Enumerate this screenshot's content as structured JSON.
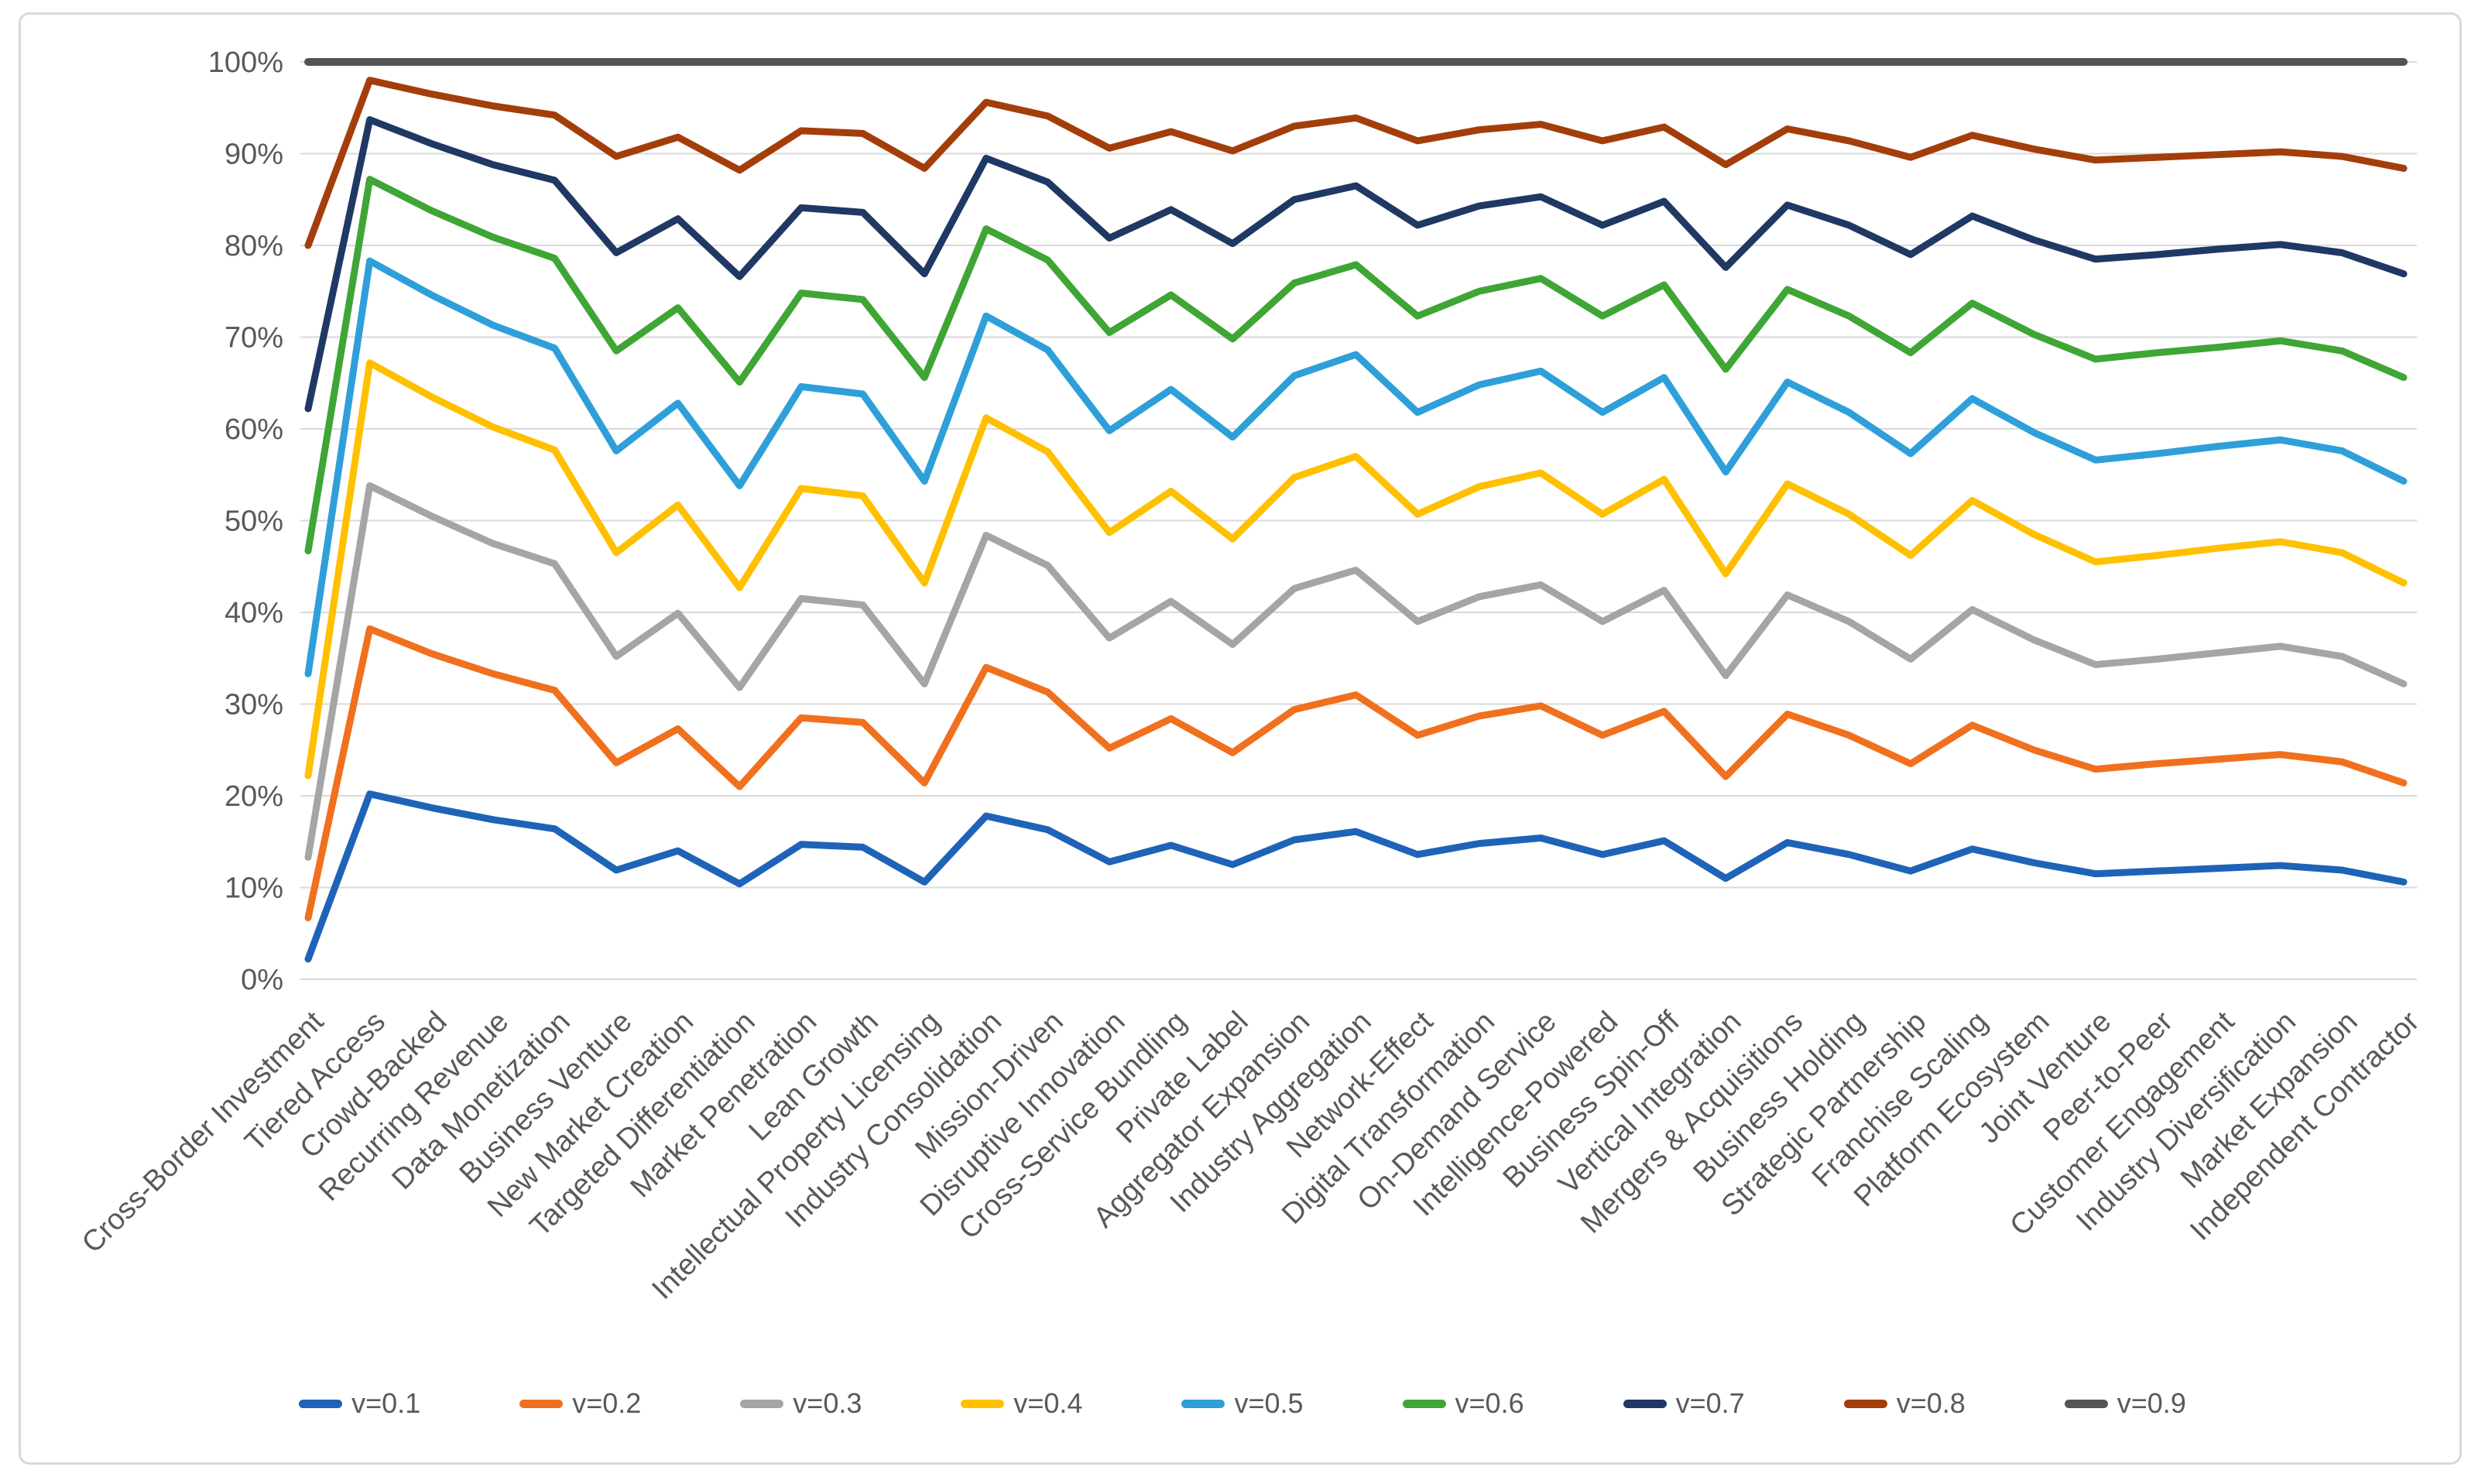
{
  "figure": {
    "background_color": "#FFFFFF",
    "border_color": "#D9D9D9",
    "axis_text_color": "#595959",
    "legend_text_color": "#595959"
  },
  "chart_data": {
    "type": "line",
    "title": "",
    "xlabel": "",
    "ylabel": "",
    "grid": "horizontal",
    "gridline_color": "#D9D9D9",
    "legend_position": "bottom",
    "x_label_rotation_deg": 45,
    "y_axis": {
      "min": 0,
      "max": 100,
      "step": 10,
      "tick_suffix": "%",
      "ticks": [
        {
          "value": 0,
          "label": "0%"
        },
        {
          "value": 10,
          "label": "10%"
        },
        {
          "value": 20,
          "label": "20%"
        },
        {
          "value": 30,
          "label": "30%"
        },
        {
          "value": 40,
          "label": "40%"
        },
        {
          "value": 50,
          "label": "50%"
        },
        {
          "value": 60,
          "label": "60%"
        },
        {
          "value": 70,
          "label": "70%"
        },
        {
          "value": 80,
          "label": "80%"
        },
        {
          "value": 90,
          "label": "90%"
        },
        {
          "value": 100,
          "label": "100%"
        }
      ]
    },
    "categories": [
      "Cross-Border Investment",
      "Tiered Access",
      "Crowd-Backed",
      "Recurring Revenue",
      "Data Monetization",
      "Business Venture",
      "New Market Creation",
      "Targeted Differentiation",
      "Market Penetration",
      "Lean Growth",
      "Intellectual Property Licensing",
      "Industry Consolidation",
      "Mission-Driven",
      "Disruptive Innovation",
      "Cross-Service Bundling",
      "Private Label",
      "Aggregator Expansion",
      "Industry Aggregation",
      "Network-Effect",
      "Digital Transformation",
      "On-Demand Service",
      "Intelligence-Powered",
      "Business Spin-Off",
      "Vertical Integration",
      "Mergers & Acquisitions",
      "Business Holding",
      "Strategic Partnership",
      "Franchise Scaling",
      "Platform Ecosystem",
      "Joint Venture",
      "Peer-to-Peer",
      "Customer Engagement",
      "Industry Diversification",
      "Market Expansion",
      "Independent Contractor"
    ],
    "series": [
      {
        "name": "v=0.1",
        "color": "#1E63B8",
        "values": [
          2.2,
          20.2,
          18.7,
          17.4,
          16.4,
          11.9,
          14.0,
          10.4,
          14.7,
          14.4,
          10.6,
          17.8,
          16.3,
          12.8,
          14.6,
          12.5,
          15.2,
          16.1,
          13.6,
          14.8,
          15.4,
          13.6,
          15.1,
          11.0,
          14.9,
          13.6,
          11.8,
          14.2,
          12.7,
          11.5,
          11.8,
          12.1,
          12.4,
          11.9,
          10.6
        ]
      },
      {
        "name": "v=0.2",
        "color": "#F0701E",
        "values": [
          6.7,
          38.2,
          35.5,
          33.3,
          31.5,
          23.6,
          27.3,
          21.0,
          28.5,
          28.0,
          21.4,
          34.0,
          31.3,
          25.2,
          28.4,
          24.7,
          29.4,
          31.0,
          26.6,
          28.7,
          29.8,
          26.6,
          29.2,
          22.1,
          28.9,
          26.6,
          23.5,
          27.7,
          25.0,
          22.9,
          23.5,
          24.0,
          24.5,
          23.7,
          21.4
        ]
      },
      {
        "name": "v=0.3",
        "color": "#A5A5A5",
        "values": [
          13.3,
          53.8,
          50.5,
          47.5,
          45.3,
          35.2,
          39.9,
          31.8,
          41.5,
          40.8,
          32.2,
          48.4,
          45.1,
          37.2,
          41.2,
          36.5,
          42.6,
          44.6,
          39.0,
          41.7,
          43.0,
          39.0,
          42.4,
          33.1,
          41.9,
          39.0,
          34.9,
          40.3,
          37.0,
          34.3,
          34.9,
          35.6,
          36.3,
          35.2,
          32.2
        ]
      },
      {
        "name": "v=0.4",
        "color": "#FFC000",
        "values": [
          22.2,
          67.2,
          63.5,
          60.2,
          57.7,
          46.5,
          51.7,
          42.7,
          53.5,
          52.7,
          43.2,
          61.2,
          57.5,
          48.7,
          53.2,
          48.0,
          54.7,
          57.0,
          50.7,
          53.7,
          55.2,
          50.7,
          54.5,
          44.2,
          54.0,
          50.7,
          46.2,
          52.2,
          48.5,
          45.5,
          46.2,
          47.0,
          47.7,
          46.5,
          43.2
        ]
      },
      {
        "name": "v=0.5",
        "color": "#2E9FD9",
        "values": [
          33.3,
          78.3,
          74.6,
          71.3,
          68.8,
          57.6,
          62.8,
          53.8,
          64.6,
          63.8,
          54.3,
          72.3,
          68.6,
          59.8,
          64.3,
          59.1,
          65.8,
          68.1,
          61.8,
          64.8,
          66.3,
          61.8,
          65.6,
          55.3,
          65.1,
          61.8,
          57.3,
          63.3,
          59.6,
          56.6,
          57.3,
          58.1,
          58.8,
          57.6,
          54.3
        ]
      },
      {
        "name": "v=0.6",
        "color": "#3FA535",
        "values": [
          46.7,
          87.2,
          83.8,
          80.9,
          78.6,
          68.5,
          73.2,
          65.1,
          74.8,
          74.1,
          65.6,
          81.8,
          78.4,
          70.5,
          74.6,
          69.8,
          75.9,
          77.9,
          72.3,
          75.0,
          76.4,
          72.3,
          75.7,
          66.5,
          75.2,
          72.3,
          68.3,
          73.7,
          70.3,
          67.6,
          68.3,
          68.9,
          69.6,
          68.5,
          65.6
        ]
      },
      {
        "name": "v=0.7",
        "color": "#1F3864",
        "values": [
          62.2,
          93.7,
          91.1,
          88.8,
          87.1,
          79.2,
          82.9,
          76.6,
          84.1,
          83.6,
          76.9,
          89.5,
          86.9,
          80.8,
          83.9,
          80.2,
          85.0,
          86.5,
          82.2,
          84.3,
          85.3,
          82.2,
          84.8,
          77.6,
          84.4,
          82.2,
          79.0,
          83.2,
          80.6,
          78.5,
          79.0,
          79.6,
          80.1,
          79.2,
          76.9
        ]
      },
      {
        "name": "v=0.8",
        "color": "#A33E0B",
        "values": [
          80.0,
          98.0,
          96.5,
          95.2,
          94.2,
          89.7,
          91.8,
          88.2,
          92.5,
          92.2,
          88.4,
          95.6,
          94.1,
          90.6,
          92.4,
          90.3,
          93.0,
          93.9,
          91.4,
          92.6,
          93.2,
          91.4,
          92.9,
          88.8,
          92.7,
          91.4,
          89.6,
          92.0,
          90.5,
          89.3,
          89.6,
          89.9,
          90.2,
          89.7,
          88.4
        ]
      },
      {
        "name": "v=0.9",
        "color": "#545454",
        "values": [
          100,
          100,
          100,
          100,
          100,
          100,
          100,
          100,
          100,
          100,
          100,
          100,
          100,
          100,
          100,
          100,
          100,
          100,
          100,
          100,
          100,
          100,
          100,
          100,
          100,
          100,
          100,
          100,
          100,
          100,
          100,
          100,
          100,
          100,
          100
        ]
      }
    ]
  }
}
